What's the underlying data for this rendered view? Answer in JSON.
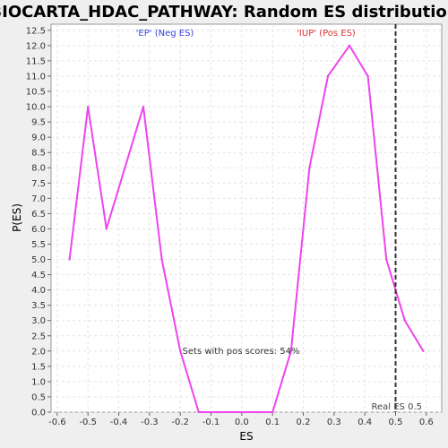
{
  "chart_data": {
    "type": "line",
    "title": "BIOCARTA_HDAC_PATHWAY: Random ES distribution",
    "xlabel": "ES",
    "ylabel": "P(ES)",
    "xlim": [
      -0.62,
      0.65
    ],
    "ylim": [
      0,
      12.7
    ],
    "x_ticks": [
      "-0.6",
      "-0.5",
      "-0.4",
      "-0.3",
      "-0.2",
      "-0.1",
      "0.0",
      "0.1",
      "0.2",
      "0.3",
      "0.4",
      "0.5",
      "0.6"
    ],
    "y_ticks": [
      "0.0",
      "0.5",
      "1.0",
      "1.5",
      "2.0",
      "2.5",
      "3.0",
      "3.5",
      "4.0",
      "4.5",
      "5.0",
      "5.5",
      "6.0",
      "6.5",
      "7.0",
      "7.5",
      "8.0",
      "8.5",
      "9.0",
      "9.5",
      "10.0",
      "10.5",
      "11.0",
      "11.5",
      "12.0",
      "12.5"
    ],
    "grid": true,
    "series": [
      {
        "color": "#ee44ee",
        "x": [
          -0.56,
          -0.5,
          -0.44,
          -0.32,
          -0.26,
          -0.2,
          -0.14,
          -0.08,
          0.0,
          0.05,
          0.1,
          0.16,
          0.22,
          0.28,
          0.35,
          0.41,
          0.47,
          0.5,
          0.53,
          0.59
        ],
        "y": [
          5.0,
          10.0,
          6.0,
          10.0,
          5.0,
          2.0,
          0.0,
          0.0,
          0.0,
          0.0,
          0.0,
          2.0,
          8.0,
          11.0,
          12.0,
          11.0,
          5.0,
          4.0,
          3.0,
          2.0
        ]
      }
    ],
    "real_es": {
      "x": 0.5,
      "label": "Real ES 0.5",
      "color": "#333333"
    },
    "annotations": {
      "neg": {
        "text": "'EP' (Neg ES)",
        "color": "#3344dd"
      },
      "pos": {
        "text": "'IUP' (Pos ES)",
        "color": "#dd3333"
      },
      "sets": {
        "text": "Sets with pos scores: 54%",
        "color": "#333333"
      }
    }
  }
}
